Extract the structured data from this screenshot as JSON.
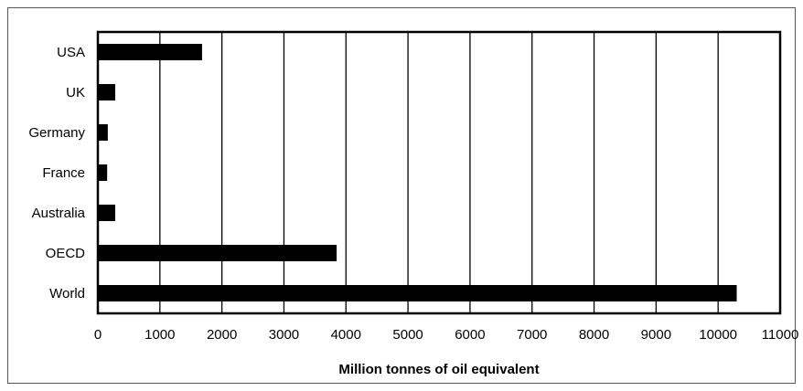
{
  "chart_data": {
    "type": "bar",
    "orientation": "horizontal",
    "categories": [
      "USA",
      "UK",
      "Germany",
      "France",
      "Australia",
      "OECD",
      "World"
    ],
    "values": [
      1680,
      280,
      160,
      150,
      280,
      3850,
      10300
    ],
    "title": "",
    "xlabel": "Million tonnes of oil equivalent",
    "ylabel": "",
    "xlim": [
      0,
      11000
    ],
    "xticks": [
      0,
      1000,
      2000,
      3000,
      4000,
      5000,
      6000,
      7000,
      8000,
      9000,
      10000,
      11000
    ],
    "xtick_labels": [
      "0",
      "1000",
      "2000",
      "3000",
      "4000",
      "5000",
      "6000",
      "7000",
      "8000",
      "9000",
      "10000",
      "11000"
    ],
    "grid": "vertical",
    "bar_color": "#000000"
  }
}
